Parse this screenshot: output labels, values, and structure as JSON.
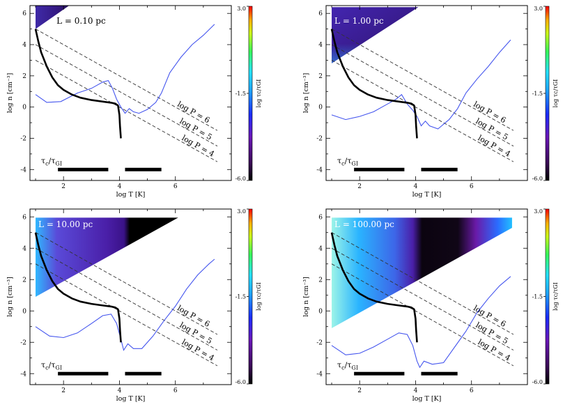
{
  "chart_data": {
    "type": "line",
    "xlabel": "log T [K]",
    "ylabel": "log n [cm⁻³]",
    "xlim": [
      0.8,
      8
    ],
    "ylim": [
      -4.7,
      6.5
    ],
    "xticks": [
      "2",
      "4",
      "6"
    ],
    "yticks": [
      "-4",
      "-2",
      "0",
      "2",
      "4",
      "6"
    ],
    "colorbar": {
      "label": "log τc/τGI",
      "ticks": [
        "3.0",
        "-1.5",
        "-6.0"
      ],
      "range": [
        -6.0,
        3.0
      ]
    },
    "ratio_label": "τc/τGI",
    "ratio_main": "τ",
    "ratio_sub_c": "c",
    "ratio_sub_gi": "GI",
    "time_bars": [
      [
        1.8,
        3.6
      ],
      [
        4.2,
        5.5
      ]
    ],
    "isobars": [
      {
        "label": "log P = 6",
        "P": 6
      },
      {
        "label": "log P = 5",
        "P": 5
      },
      {
        "label": "log P = 4",
        "P": 4
      }
    ],
    "equilibrium_curve": {
      "name": "thermal equilibrium",
      "x": [
        1.0,
        1.1,
        1.2,
        1.4,
        1.6,
        1.8,
        2.0,
        2.3,
        2.6,
        3.0,
        3.4,
        3.7,
        3.85,
        3.95,
        4.0,
        4.02,
        4.05
      ],
      "y": [
        5.0,
        4.2,
        3.5,
        2.6,
        1.9,
        1.4,
        1.1,
        0.8,
        0.6,
        0.45,
        0.35,
        0.28,
        0.22,
        0.1,
        -0.5,
        -1.2,
        -2.0
      ]
    },
    "panels": [
      {
        "label": "L = 0.10 pc",
        "cooling_curve": {
          "x": [
            1.0,
            1.4,
            1.9,
            2.5,
            3.0,
            3.4,
            3.6,
            3.75,
            3.9,
            4.05,
            4.2,
            4.35,
            4.5,
            4.7,
            5.0,
            5.3,
            5.5,
            5.8,
            6.2,
            6.6,
            7.0,
            7.4
          ],
          "y": [
            0.8,
            0.3,
            0.35,
            0.9,
            1.2,
            1.6,
            1.7,
            1.2,
            0.5,
            0.0,
            -0.4,
            -0.1,
            -0.3,
            -0.4,
            -0.15,
            0.3,
            0.9,
            2.2,
            3.2,
            4.0,
            4.6,
            5.3
          ]
        }
      },
      {
        "label": "L = 1.00 pc",
        "cooling_curve": {
          "x": [
            1.0,
            1.5,
            2.0,
            2.5,
            3.0,
            3.3,
            3.5,
            3.7,
            3.9,
            4.05,
            4.2,
            4.35,
            4.5,
            4.8,
            5.2,
            5.5,
            5.8,
            6.2,
            6.6,
            7.0,
            7.4
          ],
          "y": [
            -0.5,
            -0.8,
            -0.6,
            -0.3,
            0.2,
            0.5,
            0.8,
            0.2,
            -0.2,
            -0.6,
            -1.2,
            -0.9,
            -1.2,
            -1.4,
            -0.8,
            -0.1,
            0.9,
            1.8,
            2.6,
            3.5,
            4.3
          ]
        }
      },
      {
        "label": "L = 10.00 pc",
        "cooling_curve": {
          "x": [
            1.0,
            1.5,
            2.0,
            2.5,
            3.0,
            3.4,
            3.7,
            3.9,
            4.05,
            4.15,
            4.3,
            4.5,
            4.8,
            5.2,
            5.6,
            6.0,
            6.4,
            6.8,
            7.2,
            7.4
          ],
          "y": [
            -1.0,
            -1.6,
            -1.7,
            -1.4,
            -0.8,
            -0.3,
            -0.2,
            -0.8,
            -1.8,
            -2.5,
            -2.1,
            -2.4,
            -2.4,
            -1.6,
            -0.6,
            0.3,
            1.4,
            2.3,
            3.0,
            3.3
          ]
        }
      },
      {
        "label": "L = 100.00 pc",
        "cooling_curve": {
          "x": [
            1.0,
            1.5,
            2.0,
            2.5,
            3.0,
            3.4,
            3.7,
            3.9,
            4.05,
            4.15,
            4.3,
            4.6,
            5.0,
            5.4,
            5.8,
            6.2,
            6.6,
            7.0,
            7.4
          ],
          "y": [
            -2.2,
            -2.8,
            -2.7,
            -2.3,
            -1.8,
            -1.4,
            -1.5,
            -2.2,
            -3.2,
            -3.6,
            -3.2,
            -3.4,
            -3.3,
            -2.3,
            -1.3,
            -0.1,
            0.8,
            1.6,
            2.2
          ]
        }
      }
    ]
  }
}
